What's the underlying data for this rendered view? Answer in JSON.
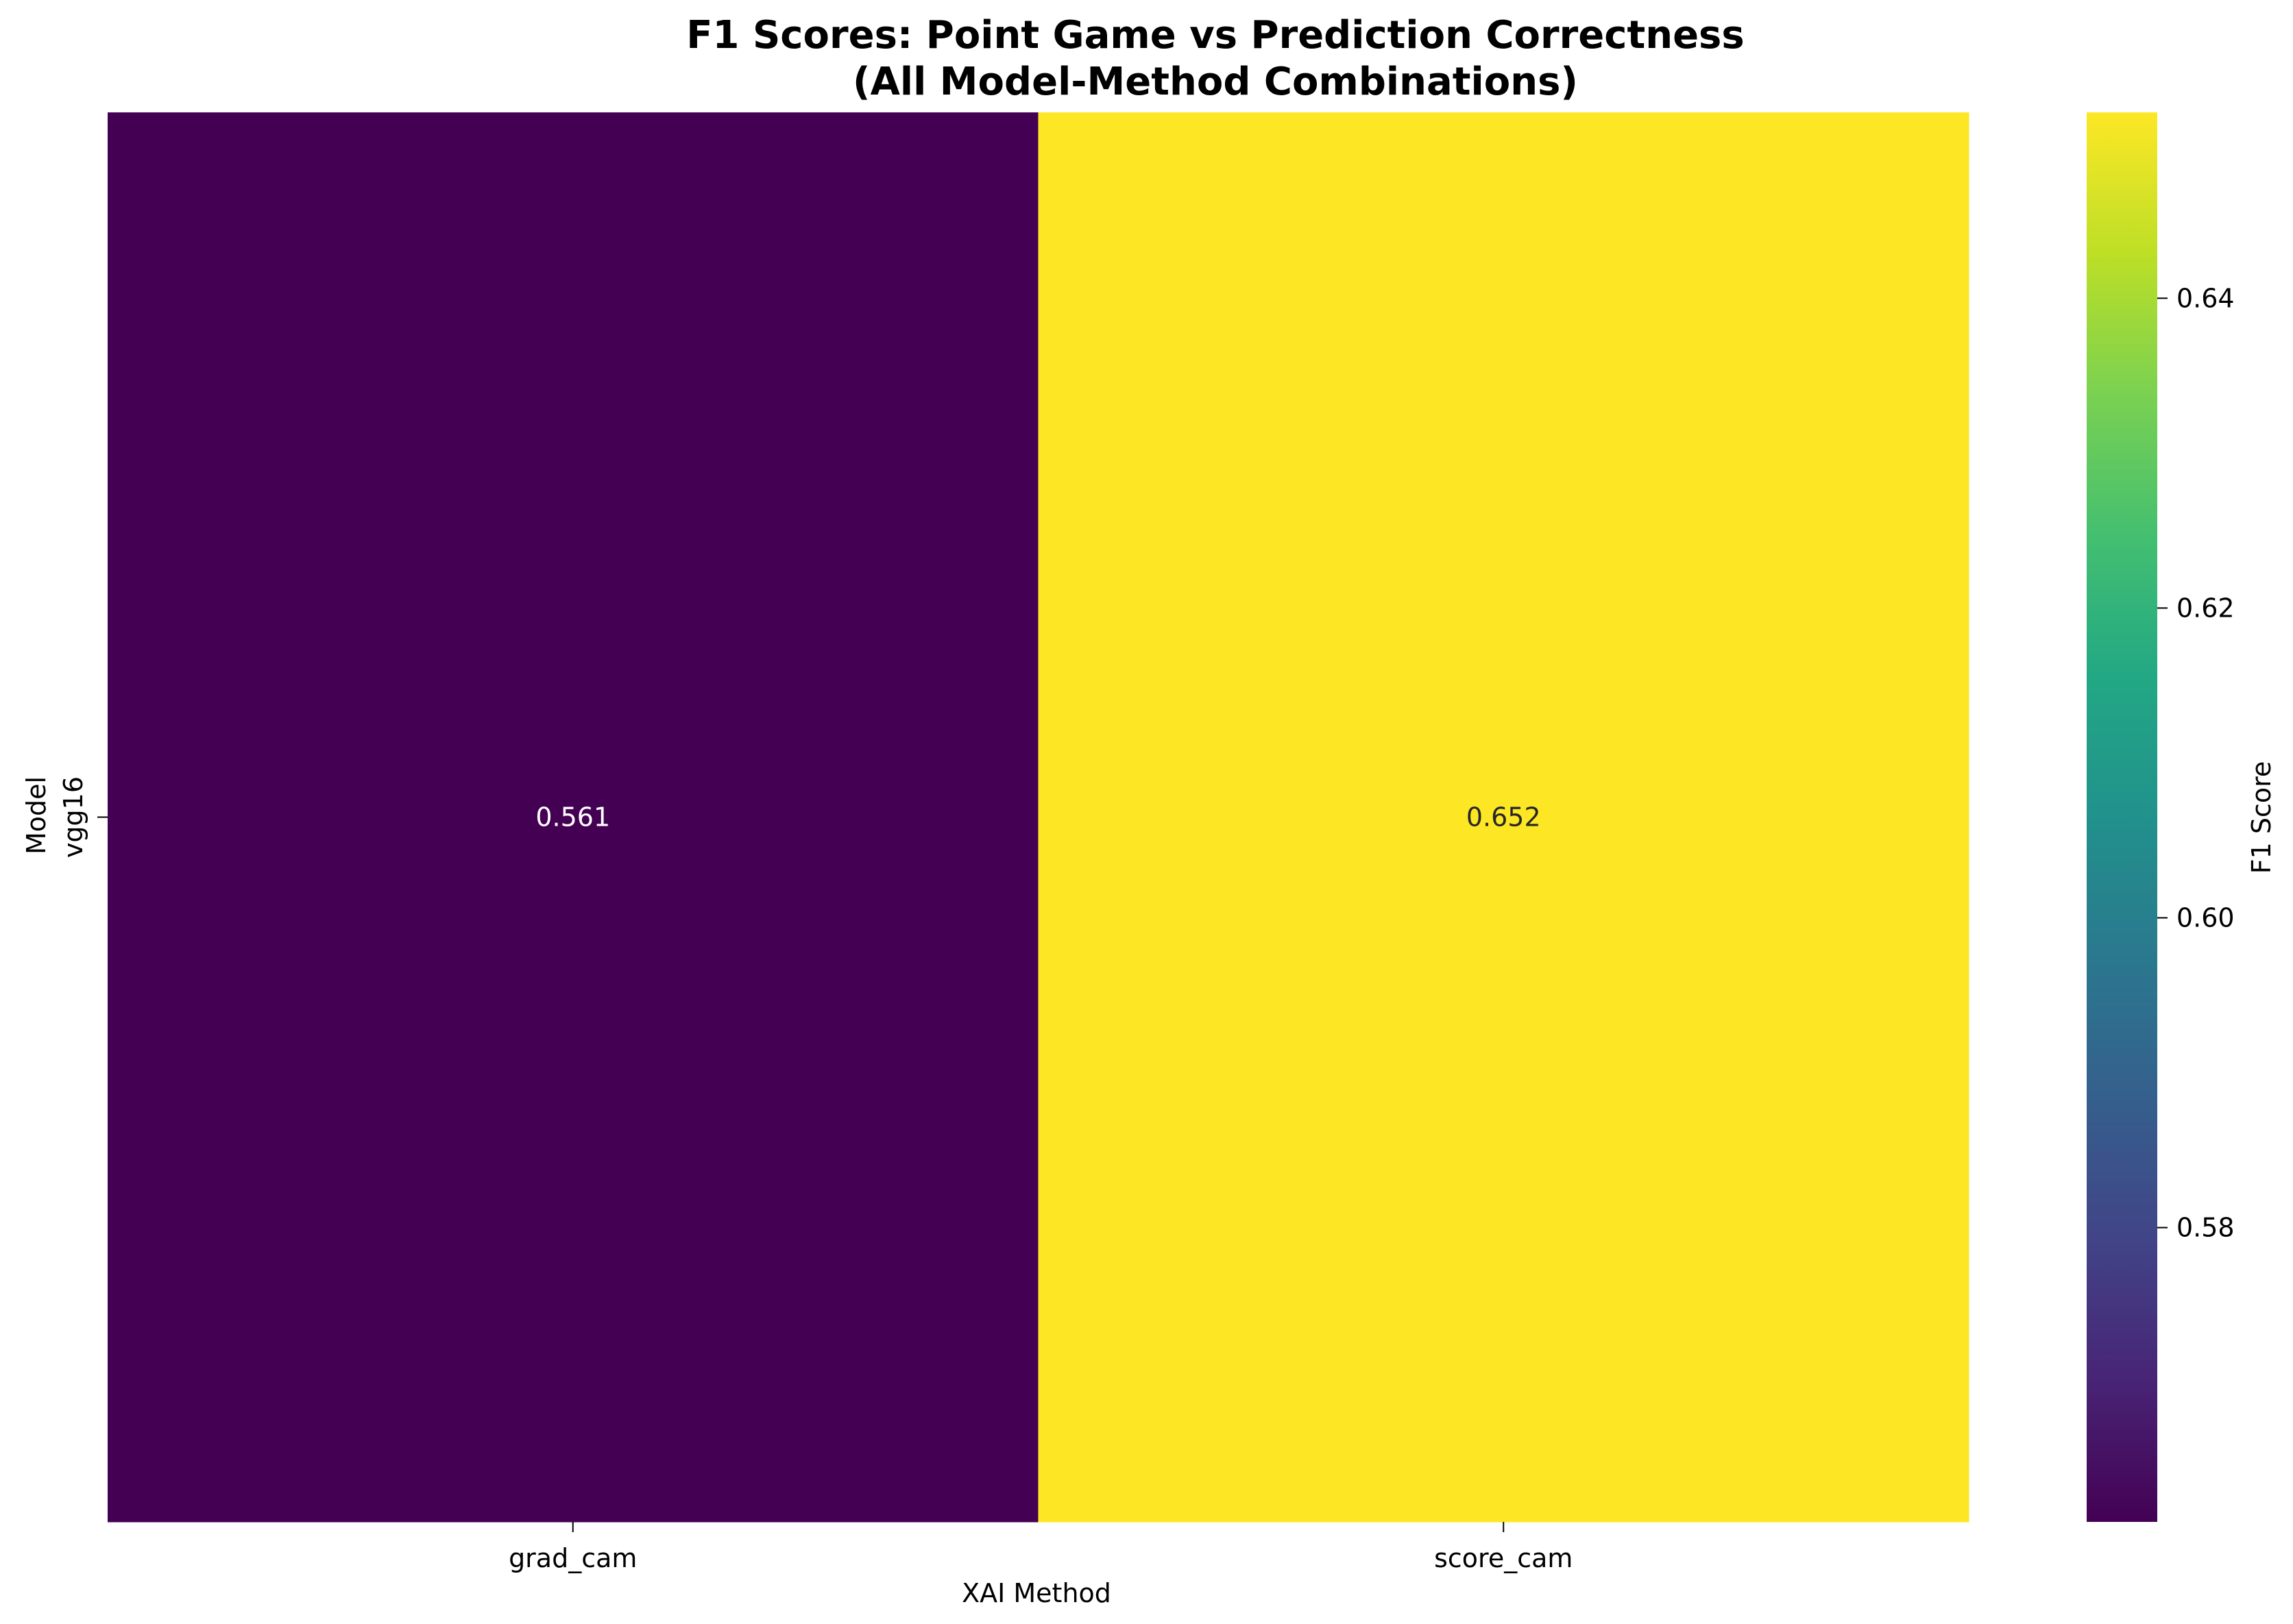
{
  "chart_data": {
    "type": "heatmap",
    "title_lines": [
      "F1 Scores: Point Game vs Prediction Correctness",
      "(All Model-Method Combinations)"
    ],
    "xlabel": "XAI Method",
    "ylabel": "Model",
    "x_categories": [
      "grad_cam",
      "score_cam"
    ],
    "y_categories": [
      "vgg16"
    ],
    "values": [
      [
        0.561,
        0.652
      ]
    ],
    "cell_labels": [
      [
        "0.561",
        "0.652"
      ]
    ],
    "colormap": "viridis",
    "colorbar": {
      "label": "F1 Score",
      "range": [
        0.561,
        0.652
      ],
      "ticks": [
        0.58,
        0.6,
        0.62,
        0.64
      ],
      "tick_labels": [
        "0.58",
        "0.60",
        "0.62",
        "0.64"
      ]
    },
    "colors": {
      "low": "#440154",
      "high": "#fde725",
      "low_text": "#ffffff",
      "high_text": "#262626"
    }
  }
}
